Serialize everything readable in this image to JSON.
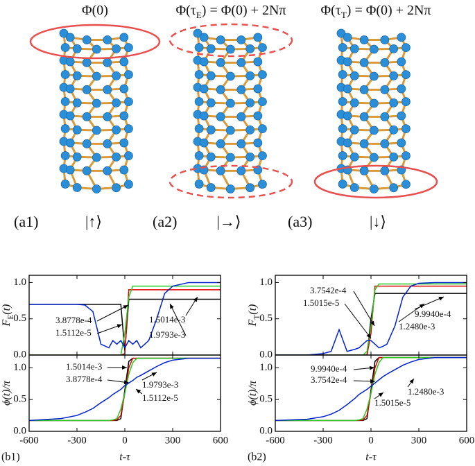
{
  "header": {
    "states": [
      {
        "formula": {
          "pre": "Φ(0)",
          "sub": "",
          "post": ""
        },
        "panel": "(a1)",
        "ket": "|↑⟩"
      },
      {
        "formula": {
          "pre": "Φ(τ",
          "sub": "E",
          "post": ") = Φ(0) + 2Nπ"
        },
        "panel": "(a2)",
        "ket": "|→⟩"
      },
      {
        "formula": {
          "pre": "Φ(τ",
          "sub": "T",
          "post": ") = Φ(0) + 2Nπ"
        },
        "panel": "(a3)",
        "ket": "|↓⟩"
      }
    ]
  },
  "chart_data": [
    {
      "type": "line",
      "ylabel": {
        "main": "F",
        "sub": "E",
        "post": "(t)"
      },
      "x": [
        -600,
        -400,
        -300,
        -250,
        -200,
        -150,
        -100,
        -75,
        -50,
        -25,
        0,
        25,
        50,
        75,
        100,
        150,
        200,
        250,
        300,
        400,
        600
      ],
      "xlim": [
        -600,
        600
      ],
      "xticks": [
        -600,
        -300,
        0,
        300,
        600
      ],
      "ylim": [
        0,
        1.1
      ],
      "yticks": [
        {
          "value": 0,
          "label": "0.0"
        },
        {
          "value": 0.5,
          "label": "0.5"
        },
        {
          "value": 1,
          "label": "1.0"
        }
      ],
      "series": [
        {
          "color": "#000000",
          "values": [
            0.7,
            0.7,
            0.7,
            0.7,
            0.7,
            0.7,
            0.7,
            0.7,
            0.7,
            0.7,
            0.05,
            0.77,
            0.77,
            0.77,
            0.77,
            0.77,
            0.77,
            0.77,
            0.77,
            0.77,
            0.77
          ]
        },
        {
          "color": "#e00000",
          "values": [
            0,
            0,
            0,
            0,
            0,
            0,
            0,
            0,
            0,
            0,
            0.02,
            0.9,
            0.9,
            0.9,
            0.9,
            0.9,
            0.9,
            0.9,
            0.9,
            0.9,
            0.9
          ]
        },
        {
          "color": "#22cc22",
          "values": [
            0,
            0,
            0,
            0,
            0,
            0,
            0,
            0,
            0,
            0,
            0.3,
            0.8,
            0.95,
            0.95,
            0.95,
            0.95,
            0.95,
            0.95,
            0.95,
            0.95,
            0.95
          ]
        },
        {
          "color": "#0020d0",
          "values": [
            0.7,
            0.7,
            0.7,
            0.69,
            0.6,
            0.15,
            0.1,
            0.2,
            0.15,
            0.2,
            0.1,
            0.2,
            0.15,
            0.2,
            0.1,
            0.2,
            0.5,
            0.85,
            0.95,
            1.0,
            1.0
          ]
        }
      ],
      "annotations": [
        "3.8778e-4",
        "1.5112e-5",
        "1.5014e-3",
        "1.9793e-3"
      ]
    },
    {
      "type": "line",
      "ylabel": {
        "main": "ϕ(t)/π",
        "sub": "",
        "post": ""
      },
      "xlabel": "t-τ",
      "panel": "(b1)",
      "x": [
        -600,
        -400,
        -300,
        -250,
        -200,
        -150,
        -100,
        -75,
        -50,
        -25,
        0,
        25,
        50,
        75,
        100,
        150,
        200,
        250,
        300,
        400,
        600
      ],
      "xlim": [
        -600,
        600
      ],
      "xticks": [
        -600,
        -300,
        0,
        300,
        600
      ],
      "ylim": [
        0,
        1.2
      ],
      "yticks": [
        {
          "value": 0,
          "label": "0.0"
        },
        {
          "value": 0.5,
          "label": "0.5"
        },
        {
          "value": 1,
          "label": "1.0"
        }
      ],
      "series": [
        {
          "color": "#000000",
          "values": [
            0.17,
            0.17,
            0.17,
            0.17,
            0.17,
            0.17,
            0.17,
            0.17,
            0.17,
            0.2,
            0.65,
            1.1,
            1.15,
            1.15,
            1.15,
            1.15,
            1.15,
            1.15,
            1.15,
            1.15,
            1.15
          ]
        },
        {
          "color": "#e00000",
          "values": [
            0.17,
            0.17,
            0.17,
            0.17,
            0.17,
            0.17,
            0.17,
            0.17,
            0.18,
            0.25,
            0.6,
            1.0,
            1.15,
            1.15,
            1.15,
            1.15,
            1.15,
            1.15,
            1.15,
            1.15,
            1.15
          ]
        },
        {
          "color": "#22cc22",
          "values": [
            0.17,
            0.17,
            0.17,
            0.17,
            0.17,
            0.17,
            0.17,
            0.18,
            0.2,
            0.35,
            0.6,
            0.9,
            1.08,
            1.15,
            1.15,
            1.15,
            1.15,
            1.15,
            1.15,
            1.15,
            1.15
          ]
        },
        {
          "color": "#0020d0",
          "values": [
            0.17,
            0.2,
            0.25,
            0.3,
            0.36,
            0.45,
            0.53,
            0.58,
            0.62,
            0.66,
            0.72,
            0.76,
            0.8,
            0.85,
            0.88,
            0.95,
            1.02,
            1.08,
            1.12,
            1.15,
            1.15
          ]
        }
      ],
      "annotations": [
        "1.5014e-3",
        "3.8778e-4",
        "1.9793e-3",
        "1.5112e-5"
      ]
    },
    {
      "type": "line",
      "ylabel": {
        "main": "F",
        "sub": "T",
        "post": "(t)"
      },
      "x": [
        -600,
        -400,
        -300,
        -250,
        -200,
        -150,
        -100,
        -75,
        -50,
        -25,
        0,
        25,
        50,
        75,
        100,
        150,
        200,
        250,
        300,
        400,
        600
      ],
      "xlim": [
        -600,
        600
      ],
      "xticks": [
        -600,
        -300,
        0,
        300,
        600
      ],
      "ylim": [
        0,
        1.1
      ],
      "yticks": [
        {
          "value": 0,
          "label": "0.0"
        },
        {
          "value": 0.5,
          "label": "0.5"
        },
        {
          "value": 1,
          "label": "1.0"
        }
      ],
      "series": [
        {
          "color": "#000000",
          "values": [
            0,
            0,
            0,
            0,
            0,
            0,
            0,
            0,
            0,
            0,
            0.5,
            0.85,
            0.85,
            0.85,
            0.85,
            0.85,
            0.85,
            0.85,
            0.85,
            0.85,
            0.85
          ]
        },
        {
          "color": "#e00000",
          "values": [
            0,
            0,
            0,
            0,
            0,
            0,
            0,
            0,
            0,
            0,
            0.3,
            0.95,
            0.95,
            0.95,
            0.95,
            0.95,
            0.95,
            0.95,
            0.95,
            0.95,
            0.95
          ]
        },
        {
          "color": "#22cc22",
          "values": [
            0,
            0,
            0,
            0,
            0,
            0,
            0,
            0,
            0,
            0.05,
            0.4,
            0.9,
            0.98,
            0.98,
            0.98,
            0.98,
            0.98,
            0.98,
            0.98,
            0.98,
            0.98
          ]
        },
        {
          "color": "#0020d0",
          "values": [
            0,
            0,
            0.02,
            0.05,
            0.35,
            0.05,
            0.08,
            0.1,
            0.15,
            0.2,
            0.2,
            0.15,
            0.1,
            0.12,
            0.15,
            0.4,
            0.8,
            0.95,
            0.99,
            1.0,
            1.0
          ]
        }
      ],
      "annotations": [
        "3.7542e-4",
        "1.5015e-5",
        "9.9940e-4",
        "1.2480e-3"
      ]
    },
    {
      "type": "line",
      "ylabel": {
        "main": "ϕ(t)/π",
        "sub": "",
        "post": ""
      },
      "xlabel": "t-τ",
      "panel": "(b2)",
      "x": [
        -600,
        -400,
        -300,
        -250,
        -200,
        -150,
        -100,
        -75,
        -50,
        -25,
        0,
        25,
        50,
        75,
        100,
        150,
        200,
        250,
        300,
        400,
        600
      ],
      "xlim": [
        -600,
        600
      ],
      "xticks": [
        -600,
        -300,
        0,
        300,
        600
      ],
      "ylim": [
        0,
        1.2
      ],
      "yticks": [
        {
          "value": 0,
          "label": "0.0"
        },
        {
          "value": 0.5,
          "label": "0.5"
        },
        {
          "value": 1,
          "label": "1.0"
        }
      ],
      "series": [
        {
          "color": "#000000",
          "values": [
            0.17,
            0.17,
            0.17,
            0.17,
            0.17,
            0.17,
            0.17,
            0.17,
            0.17,
            0.2,
            0.65,
            1.1,
            1.16,
            1.16,
            1.16,
            1.16,
            1.16,
            1.16,
            1.16,
            1.16,
            1.16
          ]
        },
        {
          "color": "#e00000",
          "values": [
            0.17,
            0.17,
            0.17,
            0.17,
            0.17,
            0.17,
            0.17,
            0.17,
            0.18,
            0.25,
            0.6,
            1.0,
            1.16,
            1.16,
            1.16,
            1.16,
            1.16,
            1.16,
            1.16,
            1.16,
            1.16
          ]
        },
        {
          "color": "#22cc22",
          "values": [
            0.17,
            0.17,
            0.17,
            0.17,
            0.17,
            0.17,
            0.17,
            0.18,
            0.2,
            0.35,
            0.6,
            0.9,
            1.08,
            1.16,
            1.16,
            1.16,
            1.16,
            1.16,
            1.16,
            1.16,
            1.16
          ]
        },
        {
          "color": "#0020d0",
          "values": [
            0.17,
            0.19,
            0.23,
            0.27,
            0.33,
            0.42,
            0.52,
            0.58,
            0.62,
            0.66,
            0.71,
            0.76,
            0.81,
            0.86,
            0.9,
            0.97,
            1.04,
            1.09,
            1.13,
            1.16,
            1.16
          ]
        }
      ],
      "annotations": [
        "9.9940e-4",
        "3.7542e-4",
        "1.2480e-3",
        "1.5015e-5"
      ]
    }
  ]
}
